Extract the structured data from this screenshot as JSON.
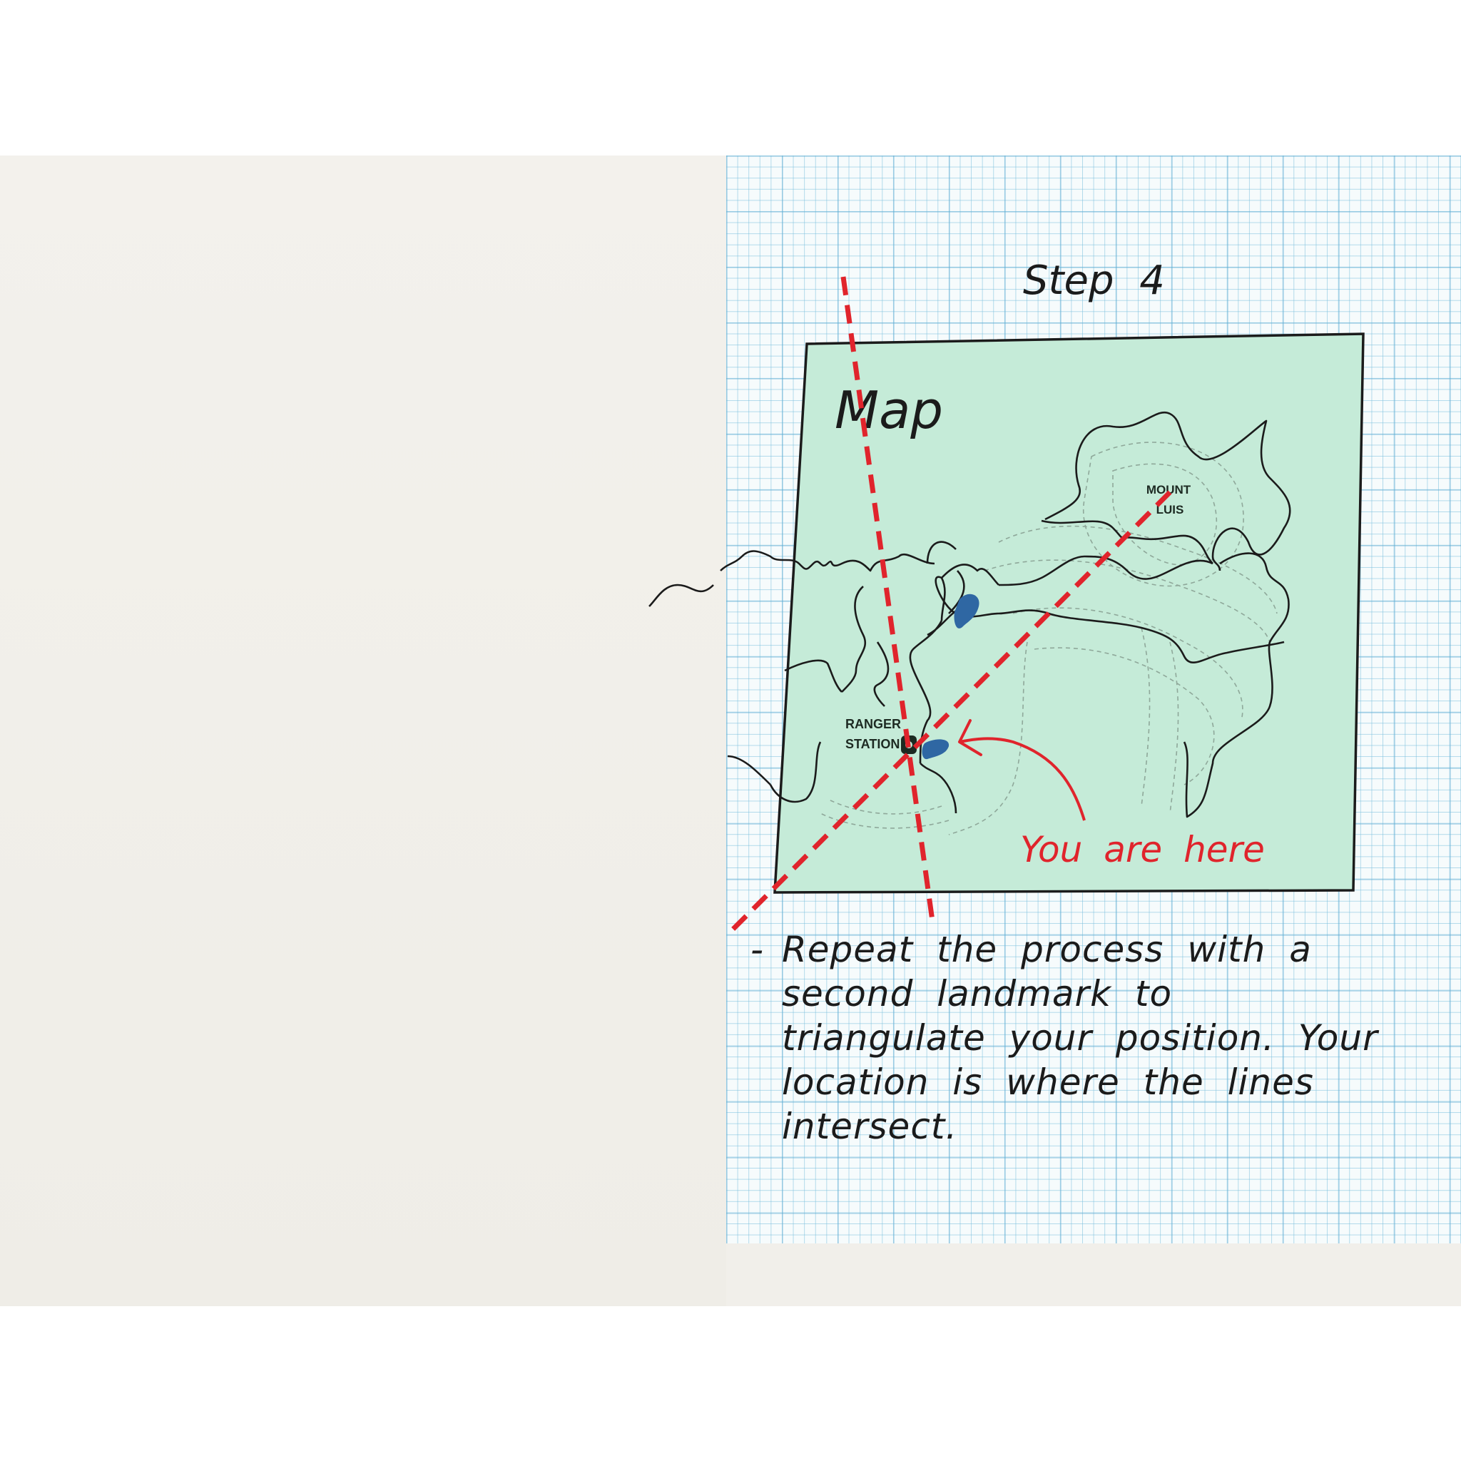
{
  "step_title": "Step 4",
  "map": {
    "title": "Map",
    "landmarks": {
      "mount_line1": "MOUNT",
      "mount_line2": "LUIS",
      "ranger_line1": "RANGER",
      "ranger_line2": "STATION"
    },
    "you_are_here": "You are here"
  },
  "instruction": {
    "bullet": "-",
    "text": "Repeat the process with a second landmark to triangulate your position. Your location is where the lines intersect."
  },
  "colors": {
    "map_fill": "#c5ebd8",
    "bearing_line": "#e0242c",
    "water": "#2f67a3",
    "ink": "#1b1b1b"
  }
}
